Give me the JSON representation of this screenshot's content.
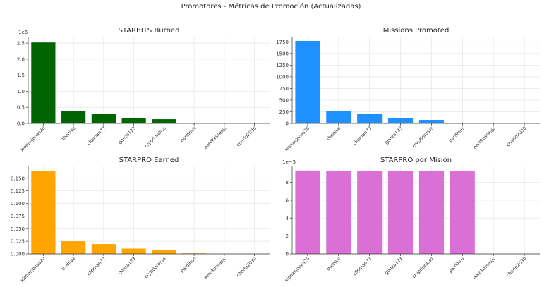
{
  "figure": {
    "suptitle": "Promotores - Métricas de Promoción (Actualizadas)"
  },
  "chart_data": [
    {
      "type": "bar",
      "title": "STARBITS Burned",
      "color": "#006400",
      "categories": [
        "xjonasjonas20",
        "thehive",
        "clipman77",
        "gonza123",
        "cryptlordsss",
        "pardinus",
        "aerokossasjc",
        "charlo2030"
      ],
      "values": [
        2520000,
        380000,
        290000,
        170000,
        130000,
        15000,
        1500,
        1000
      ],
      "ylim": [
        0,
        2700000
      ],
      "yticks": [
        0,
        500000,
        1000000,
        1500000,
        2000000,
        2500000
      ],
      "ytick_labels": [
        "0.0",
        "0.5",
        "1.0",
        "1.5",
        "2.0",
        "2.5"
      ],
      "multiplier": "1e6",
      "grid": true
    },
    {
      "type": "bar",
      "title": "Missions Promoted",
      "color": "#1e90ff",
      "categories": [
        "xjonasjonas20",
        "thehive",
        "clipman77",
        "gonza123",
        "cryptlordsss",
        "pardinus",
        "aerokossasjc",
        "charlo2030"
      ],
      "values": [
        1770,
        270,
        210,
        115,
        75,
        12,
        1,
        1
      ],
      "ylim": [
        0,
        1860
      ],
      "yticks": [
        0,
        250,
        500,
        750,
        1000,
        1250,
        1500,
        1750
      ],
      "ytick_labels": [
        "0",
        "250",
        "500",
        "750",
        "1000",
        "1250",
        "1500",
        "1750"
      ],
      "multiplier": "",
      "grid": true
    },
    {
      "type": "bar",
      "title": "STARPRO Earned",
      "color": "#ffa500",
      "categories": [
        "xjonasjonas20",
        "thehive",
        "clipman77",
        "gonza123",
        "cryptlordsss",
        "pardinus",
        "aerokossasjc",
        "charlo2030"
      ],
      "values": [
        0.165,
        0.025,
        0.0195,
        0.0105,
        0.007,
        0.0011,
        0.0001,
        0.0001
      ],
      "ylim": [
        0,
        0.1735
      ],
      "yticks": [
        0,
        0.025,
        0.05,
        0.075,
        0.1,
        0.125,
        0.15
      ],
      "ytick_labels": [
        "0.000",
        "0.025",
        "0.050",
        "0.075",
        "0.100",
        "0.125",
        "0.150"
      ],
      "multiplier": "",
      "grid": true
    },
    {
      "type": "bar",
      "title": "STARPRO por Misión",
      "color": "#da70d6",
      "categories": [
        "xjonasjonas20",
        "thehive",
        "clipman77",
        "gonza123",
        "cryptlordsss",
        "pardinus",
        "aerokossasjc",
        "charlo2030"
      ],
      "values": [
        9.32e-05,
        9.31e-05,
        9.3e-05,
        9.29e-05,
        9.29e-05,
        9.25e-05,
        0,
        0
      ],
      "ylim": [
        0,
        9.78e-05
      ],
      "yticks": [
        0,
        2e-05,
        4e-05,
        6e-05,
        8e-05
      ],
      "ytick_labels": [
        "0",
        "2",
        "4",
        "6",
        "8"
      ],
      "multiplier": "1e−5",
      "grid": true
    }
  ]
}
